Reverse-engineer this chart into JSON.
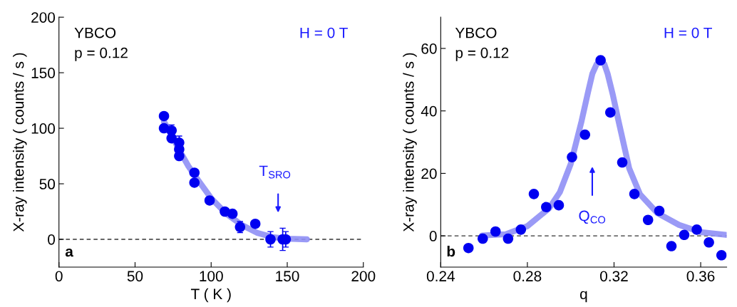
{
  "chart_data": [
    {
      "type": "scatter",
      "xlabel": "T ( K )",
      "ylabel": "X-ray intensity ( counts / s )",
      "xlim": [
        0,
        200
      ],
      "ylim": [
        -25,
        200
      ],
      "xticks": [
        0,
        50,
        100,
        150,
        200
      ],
      "yticks": [
        0,
        50,
        100,
        150,
        200
      ],
      "grid": false,
      "annotations": [
        "YBCO",
        "p = 0.12",
        "H = 0 T",
        "a",
        "T$_{SRO}$"
      ],
      "ref_lines": [
        {
          "axis": "y",
          "value": 0,
          "color": "#333333",
          "line_style": "dashed"
        }
      ],
      "series": [
        {
          "type": "line",
          "color": "#8f8ff5",
          "marker": "none",
          "x": [
            69,
            75,
            80,
            85,
            90,
            100,
            110,
            120,
            130,
            140,
            150,
            163
          ],
          "values": [
            106,
            91,
            78,
            66,
            56,
            37,
            23,
            13,
            6,
            2,
            0.5,
            0
          ]
        },
        {
          "marker": "circle",
          "color": "#0000f0",
          "x": [
            69,
            69,
            74,
            74,
            79,
            79,
            79,
            89,
            89,
            99,
            109,
            114,
            119,
            129,
            139,
            147,
            149
          ],
          "values": [
            111,
            100,
            98,
            91,
            87,
            81,
            75,
            60,
            51,
            35,
            25,
            23,
            11,
            14,
            0,
            0,
            0
          ],
          "errors": [
            null,
            null,
            5,
            null,
            6,
            null,
            null,
            null,
            null,
            null,
            null,
            null,
            5,
            null,
            7,
            10,
            7
          ]
        }
      ]
    },
    {
      "type": "scatter",
      "xlabel": "q",
      "ylabel": "X-ray intensity ( counts / s )",
      "xlim": [
        0.24,
        0.372
      ],
      "ylim": [
        -10,
        70
      ],
      "xticks": [
        0.24,
        0.28,
        0.32,
        0.36
      ],
      "yticks": [
        0,
        20,
        40,
        60
      ],
      "grid": false,
      "annotations": [
        "YBCO",
        "p = 0.12",
        "H = 0 T",
        "b",
        "Q$_{CO}$"
      ],
      "ref_lines": [
        {
          "axis": "y",
          "value": 0,
          "color": "#333333",
          "line_style": "dashed"
        }
      ],
      "series": [
        {
          "type": "line",
          "color": "#8f8ff5",
          "marker": "none",
          "x": [
            0.259,
            0.27,
            0.28,
            0.29,
            0.295,
            0.3,
            0.305,
            0.308,
            0.31,
            0.312,
            0.3138,
            0.3155,
            0.317,
            0.3195,
            0.322,
            0.327,
            0.332,
            0.34,
            0.35,
            0.36,
            0.372
          ],
          "values": [
            0.1,
            0.5,
            3.1,
            8.8,
            14,
            23,
            36.7,
            46,
            51.9,
            55,
            56,
            55,
            52,
            45,
            37,
            21.6,
            13.3,
            7.3,
            3.5,
            1.2,
            0.3
          ]
        },
        {
          "marker": "circle",
          "color": "#0000f0",
          "x": [
            0.2528,
            0.2594,
            0.2653,
            0.2711,
            0.277,
            0.283,
            0.2887,
            0.2945,
            0.3006,
            0.3066,
            0.3138,
            0.3183,
            0.3238,
            0.3294,
            0.3357,
            0.3409,
            0.3465,
            0.3524,
            0.3582,
            0.3638,
            0.3696
          ],
          "values": [
            -3.9,
            -0.9,
            1.4,
            -0.9,
            2.0,
            13.4,
            9.2,
            9.8,
            25.2,
            32.4,
            56.2,
            39.5,
            23.5,
            13.4,
            5.1,
            8.0,
            -3.3,
            0.3,
            2.0,
            -2.1,
            -6.2
          ]
        }
      ]
    }
  ]
}
